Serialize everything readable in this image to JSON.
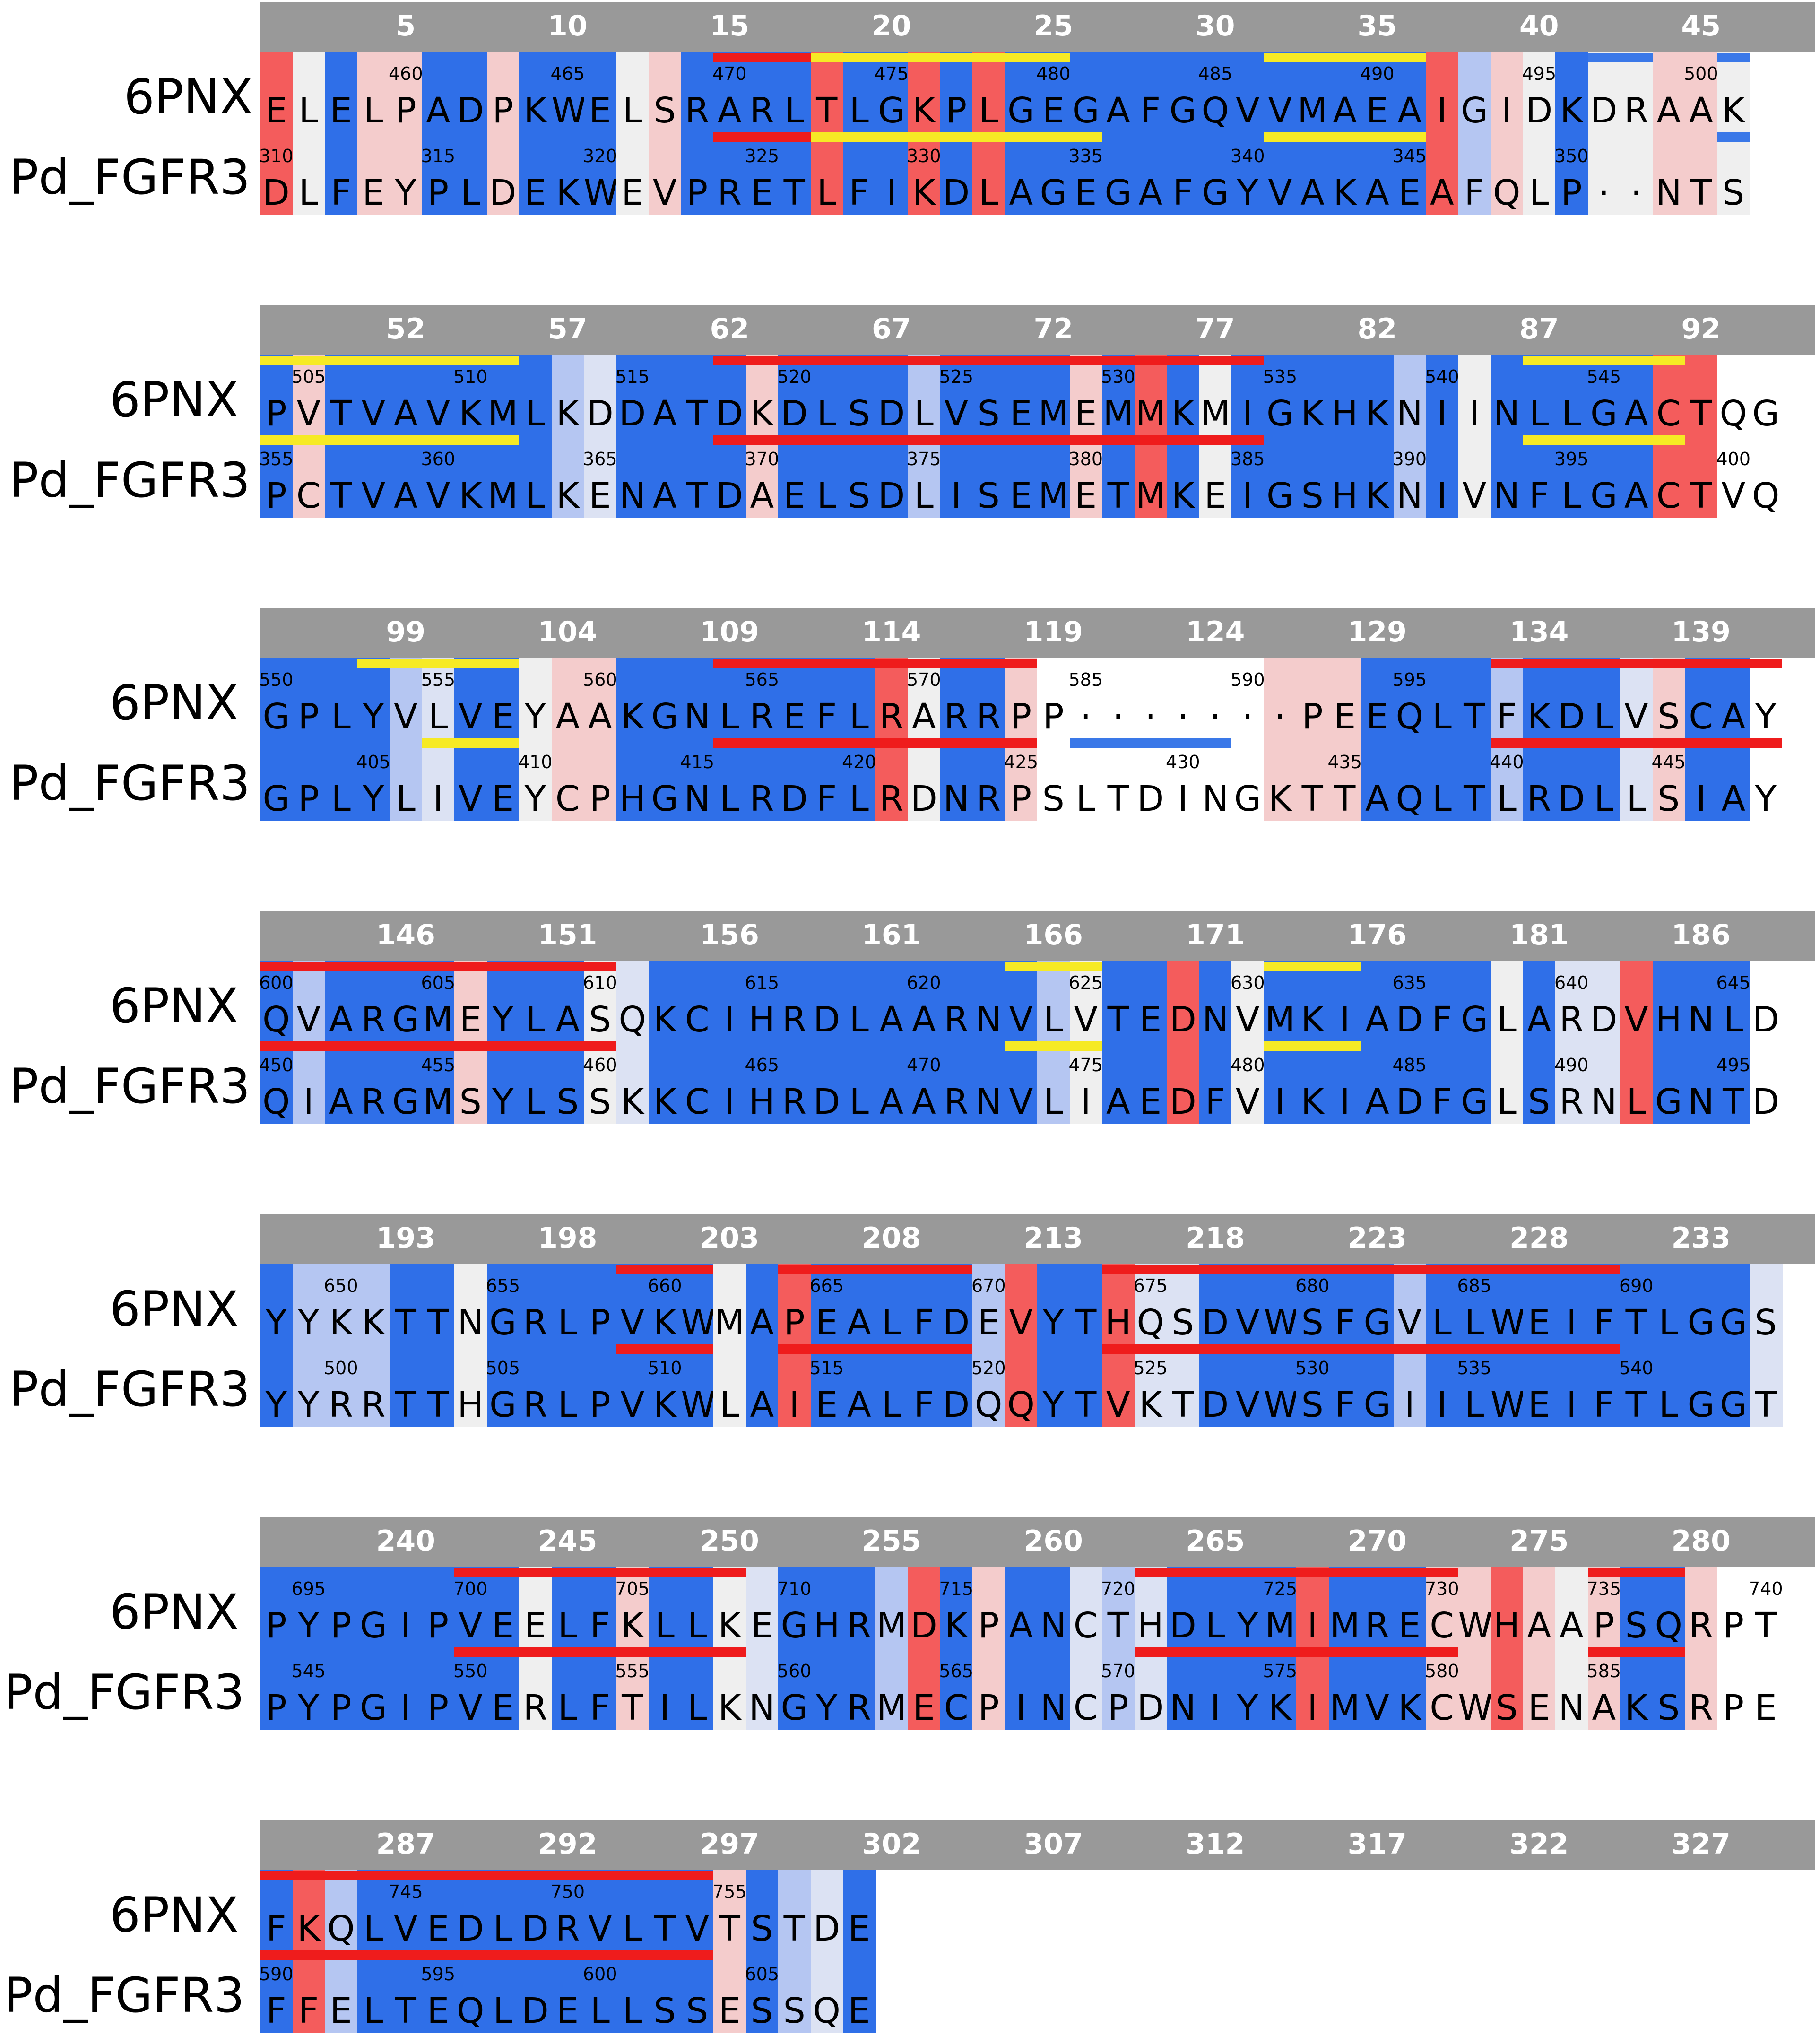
{
  "sequence_names": [
    "6PNX",
    "Pd_FGFR3"
  ],
  "colors": {
    "blue": "#2f6fe8",
    "light_blue": "#b5c6f2",
    "very_light_blue": "#dce2f3",
    "gray": "#efefef",
    "light_pink": "#f4cccc",
    "pink": "#f09c9c",
    "red": "#f45c5c",
    "white": "#ffffff",
    "helix": "#ef1c1c",
    "strand": "#f6ea25",
    "other": "#3a78e8",
    "ruler": "#999999"
  },
  "blocks": [
    {
      "ticks": [
        "5",
        "10",
        "15",
        "20",
        "25",
        "30",
        "35",
        "40",
        "45"
      ],
      "s1": "ELELPADPKWELSRARLTLGKPLGEGAFGQVVMAEAIGIDKDRAAK",
      "s2": "DLFEYPLDEKWEVPRETLFIKDLAGEGAFGYVAKAEAFQLP··NTST",
      "colors": "rgbppbbpbbbgpbbbbrbbrbrbbbbbbbbbbbbbrlpgbggppg",
      "s1_nums": [
        "460",
        "465",
        "470",
        "475",
        "480",
        "485",
        "490",
        "495",
        "500"
      ],
      "s2_nums": [
        "310",
        "315",
        "320",
        "325",
        "330",
        "335",
        "340",
        "345",
        "350"
      ],
      "ss1": "....................................",
      "ss2": "",
      "s1_start": 456,
      "s2_start": 310
    },
    {
      "ticks": [
        "52",
        "57",
        "62",
        "67",
        "72",
        "77",
        "82",
        "87",
        "92"
      ],
      "s1": "PVTVAVKMLKDDATDKDLSDLVSEMEMMKMIGKHKNIINLLGACTQG",
      "s2": "PCTVAVKMLKENATDAELSDLISEMETMKEIGSHKNIVNFLGACTVQ",
      "colors": "bpbbbbbbblvbbbbpbbbblbbbbpbrbgbbbbblbgbbbbbrr",
      "s1_nums": [
        "505",
        "510",
        "515",
        "520",
        "525",
        "530",
        "535",
        "540",
        "545"
      ],
      "s2_nums": [
        "355",
        "360",
        "365",
        "370",
        "375",
        "380",
        "385",
        "390",
        "395",
        "400"
      ],
      "ss1": "",
      "ss2": "",
      "s1_start": 504,
      "s2_start": 355
    },
    {
      "ticks": [
        "99",
        "104",
        "109",
        "114",
        "119",
        "124",
        "129",
        "134",
        "139"
      ],
      "s1": "GPLYVLVEYAAKGNLREFLRARRPP·······PEEQLTFKDLVSCAY",
      "s2": "GPLYLIVEYCPHGNLRDFLRDNRPSLTDINGKTTAQLTLRDLLSIAY",
      "colors": "bbbblvbbgppbbbbbbbbrgbbpwwwwwwwpppbbbblbbbvpbb",
      "s1_nums": [
        "550",
        "555",
        "560",
        "565",
        "570",
        "585",
        "590",
        "595"
      ],
      "s2_nums": [
        "405",
        "410",
        "415",
        "420",
        "425",
        "430",
        "435",
        "440",
        "445"
      ],
      "ss1": "",
      "ss2": "",
      "s1_start": 550,
      "s2_start": 402
    },
    {
      "ticks": [
        "146",
        "151",
        "156",
        "161",
        "166",
        "171",
        "176",
        "181",
        "186"
      ],
      "s1": "QVARGMEYLASQKCIHRDLAARNVLVTEDNVMKIADFGLARDVHNLD",
      "s2": "QIARGMSYLSSKKCIHRDLAARNVLIAEDFVIKIADFGLSRNLGNTD",
      "colors": "blbbbbpbbbgvbbbbbbbbbbbblgbbrbgbbbbbbbgbvvrbbb",
      "s1_nums": [
        "600",
        "605",
        "610",
        "615",
        "620",
        "625",
        "630",
        "635",
        "640",
        "645"
      ],
      "s2_nums": [
        "450",
        "455",
        "460",
        "465",
        "470",
        "475",
        "480",
        "485",
        "490",
        "495"
      ],
      "ss1": "",
      "ss2": "",
      "s1_start": 600,
      "s2_start": 450
    },
    {
      "ticks": [
        "193",
        "198",
        "203",
        "208",
        "213",
        "218",
        "223",
        "228",
        "233"
      ],
      "s1": "YYKKTTNGRLPVKWMAPEALFDEVYTHQSDVWSFGVLLWEIFTLGGS",
      "s2": "YYRRTTHGRLPVKWLAIEALFDQQYTVKTDVWSFGIILWEIFTLGGT",
      "colors": "blllbbgbbbbbbbgbrbbbbblrbbrvvbbbbbblbbbbbbbbbbv",
      "s1_nums": [
        "650",
        "655",
        "660",
        "665",
        "670",
        "675",
        "680",
        "685",
        "690"
      ],
      "s2_nums": [
        "500",
        "505",
        "510",
        "515",
        "520",
        "525",
        "530",
        "535",
        "540"
      ],
      "ss1": "",
      "ss2": "",
      "s1_start": 648,
      "s2_start": 498
    },
    {
      "ticks": [
        "240",
        "245",
        "250",
        "255",
        "260",
        "265",
        "270",
        "275",
        "280"
      ],
      "s1": "PYPGIPVEELFKLLKEGHRMDKPANCTHDLYMIMRECWHAAPSQRPT",
      "s2": "PYPGIPVERLFTILKNGYRMECPINCPDNIYKIMVKCWSENAKSRPE",
      "colors": "bbbbbbbbgbbpbbgvbbblrbpbbvlvbbbbrbbbpprpgpbbp",
      "s1_nums": [
        "695",
        "700",
        "705",
        "710",
        "715",
        "720",
        "725",
        "730",
        "735",
        "740"
      ],
      "s2_nums": [
        "545",
        "550",
        "555",
        "560",
        "565",
        "570",
        "575",
        "580",
        "585"
      ],
      "ss1": "",
      "ss2": "",
      "s1_start": 694,
      "s2_start": 544
    },
    {
      "ticks": [
        "287",
        "292",
        "297",
        "302",
        "307",
        "312",
        "317",
        "322",
        "327"
      ],
      "s1": "FKQLVEDLDRVLTVTSTDE",
      "s2": "FFELTEQLDELLSSESSQE",
      "colors": "brlbbbbbbbbbbbpblvb",
      "s1_nums": [
        "745",
        "750",
        "755"
      ],
      "s2_nums": [
        "590",
        "595",
        "600",
        "605"
      ],
      "ss1": "",
      "ss2": "",
      "s1_start": 741,
      "s2_start": 590
    }
  ]
}
